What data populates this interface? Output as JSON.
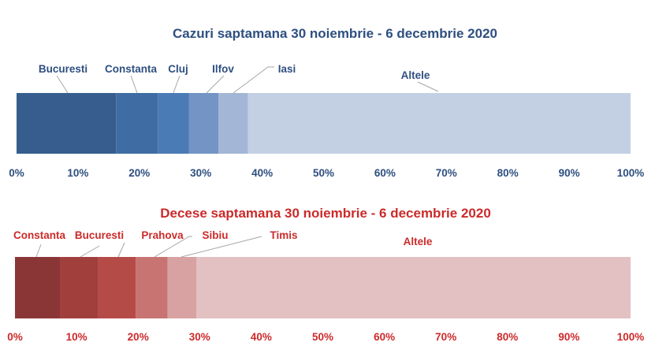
{
  "chart_data": [
    {
      "type": "bar",
      "orientation": "horizontal-stacked-100",
      "title": "Cazuri saptamana 30 noiembrie - 6 decembrie 2020",
      "categories": [
        "Bucuresti",
        "Constanta",
        "Cluj",
        "Ilfov",
        "Iasi",
        "Altele"
      ],
      "values": [
        16.2,
        6.8,
        5.1,
        4.8,
        4.8,
        62.3
      ],
      "colors": [
        "#365d8e",
        "#3f6ca3",
        "#4a7bb5",
        "#7394c4",
        "#a3b6d6",
        "#c3cfe3"
      ],
      "text_color": "#2e4f80",
      "xlim": [
        0,
        100
      ],
      "xticks": [
        "0%",
        "10%",
        "20%",
        "30%",
        "40%",
        "50%",
        "60%",
        "70%",
        "80%",
        "90%",
        "100%"
      ],
      "grid": false,
      "legend": "none"
    },
    {
      "type": "bar",
      "orientation": "horizontal-stacked-100",
      "title": "Decese saptamana 30 noiembrie - 6 decembrie 2020",
      "categories": [
        "Constanta",
        "Bucuresti",
        "Prahova",
        "Sibiu",
        "Timis",
        "Altele"
      ],
      "values": [
        7.3,
        6.2,
        6.1,
        5.2,
        4.7,
        70.5
      ],
      "colors": [
        "#8b3636",
        "#a13f3d",
        "#b54b47",
        "#c77472",
        "#d8a2a2",
        "#e3c1c3"
      ],
      "text_color": "#cc2a2a",
      "xlim": [
        0,
        100
      ],
      "xticks": [
        "0%",
        "10%",
        "20%",
        "30%",
        "40%",
        "50%",
        "60%",
        "70%",
        "80%",
        "90%",
        "100%"
      ],
      "grid": false,
      "legend": "none"
    }
  ]
}
